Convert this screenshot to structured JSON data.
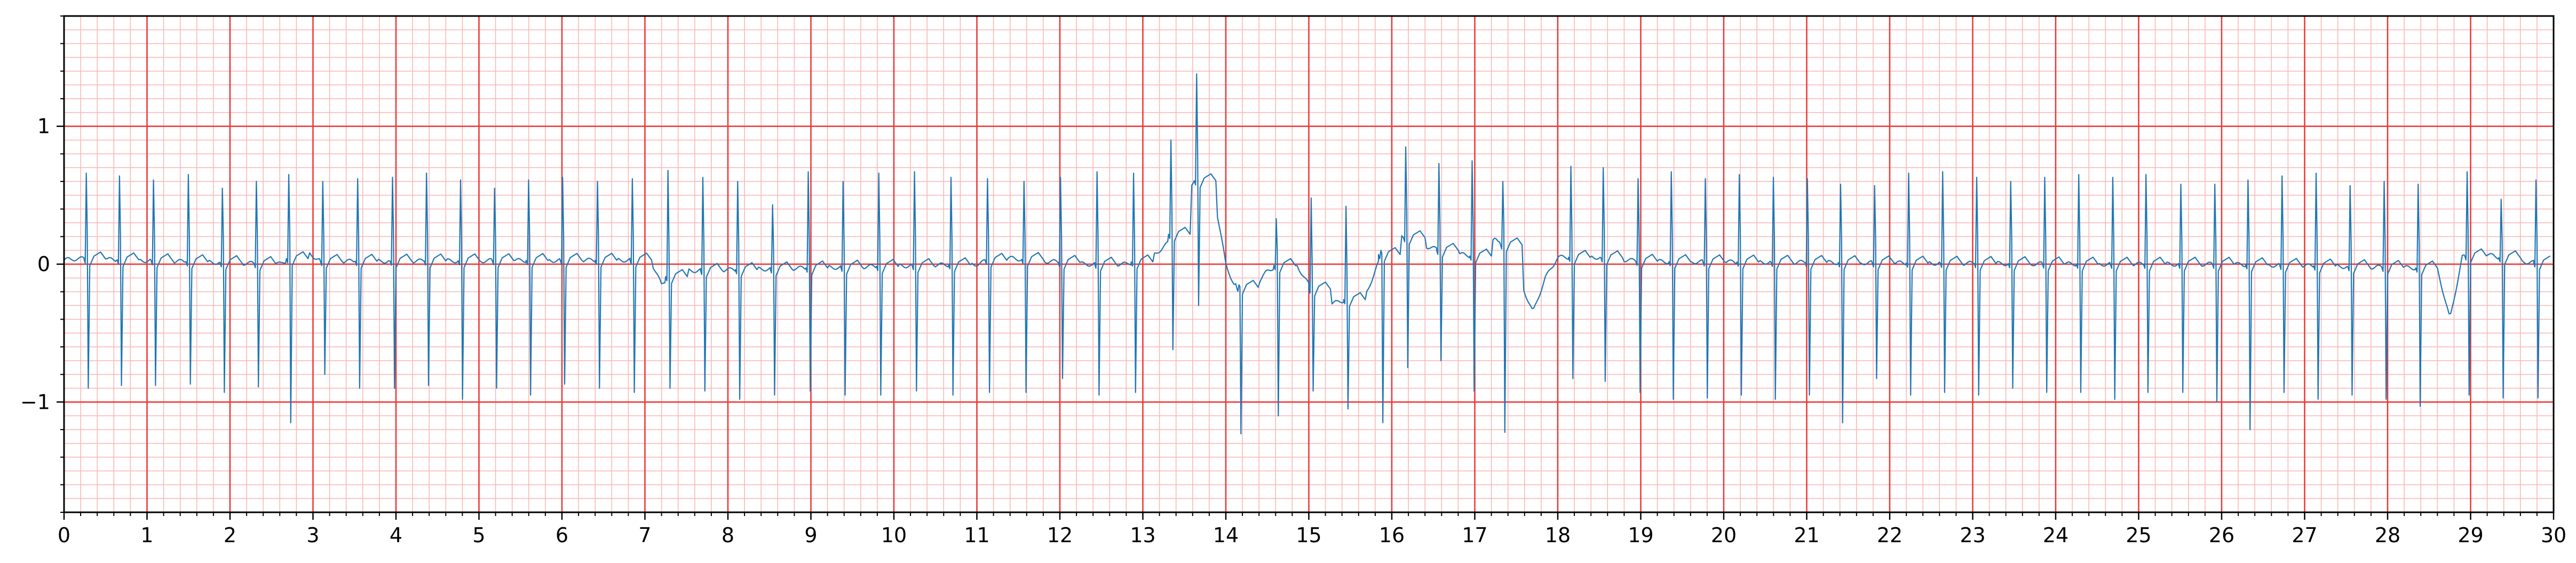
{
  "chart_data": {
    "type": "line",
    "title": "",
    "xlabel": "",
    "ylabel": "",
    "xlim": [
      0,
      30
    ],
    "ylim": [
      -1.8,
      1.8
    ],
    "x_ticks": [
      0,
      1,
      2,
      3,
      4,
      5,
      6,
      7,
      8,
      9,
      10,
      11,
      12,
      13,
      14,
      15,
      16,
      17,
      18,
      19,
      20,
      21,
      22,
      23,
      24,
      25,
      26,
      27,
      28,
      29,
      30
    ],
    "x_tick_labels": [
      "0",
      "1",
      "2",
      "3",
      "4",
      "5",
      "6",
      "7",
      "8",
      "9",
      "10",
      "11",
      "12",
      "13",
      "14",
      "15",
      "16",
      "17",
      "18",
      "19",
      "20",
      "21",
      "22",
      "23",
      "24",
      "25",
      "26",
      "27",
      "28",
      "29",
      "30"
    ],
    "y_ticks": [
      -1,
      0,
      1
    ],
    "y_tick_labels": [
      "−1",
      "0",
      "1"
    ],
    "grid": {
      "major_x_step": 1,
      "major_y_step": 1,
      "minor_x_step": 0.2,
      "minor_y_step": 0.1,
      "major_color": "#ee3333",
      "minor_color": "#f9b4b4"
    },
    "line_color": "#1f77b4",
    "series": [
      {
        "name": "",
        "beats": [
          {
            "t": 0.28,
            "r": 0.66,
            "s": -0.9
          },
          {
            "t": 0.68,
            "r": 0.64,
            "s": -0.88
          },
          {
            "t": 1.09,
            "r": 0.61,
            "s": -0.88
          },
          {
            "t": 1.51,
            "r": 0.65,
            "s": -0.87
          },
          {
            "t": 1.92,
            "r": 0.55,
            "s": -0.93
          },
          {
            "t": 2.33,
            "r": 0.6,
            "s": -0.89
          },
          {
            "t": 2.72,
            "r": 0.65,
            "s": -1.15
          },
          {
            "t": 3.13,
            "r": 0.6,
            "s": -0.8
          },
          {
            "t": 3.55,
            "r": 0.62,
            "s": -0.9
          },
          {
            "t": 3.97,
            "r": 0.63,
            "s": -0.9
          },
          {
            "t": 4.38,
            "r": 0.66,
            "s": -0.88
          },
          {
            "t": 4.79,
            "r": 0.61,
            "s": -0.98
          },
          {
            "t": 5.2,
            "r": 0.55,
            "s": -0.9
          },
          {
            "t": 5.61,
            "r": 0.61,
            "s": -0.95
          },
          {
            "t": 6.02,
            "r": 0.63,
            "s": -0.87
          },
          {
            "t": 6.44,
            "r": 0.6,
            "s": -0.9
          },
          {
            "t": 6.86,
            "r": 0.62,
            "s": -0.93
          },
          {
            "t": 7.29,
            "r": 0.68,
            "s": -0.9
          },
          {
            "t": 7.71,
            "r": 0.63,
            "s": -0.92
          },
          {
            "t": 8.13,
            "r": 0.6,
            "s": -0.98
          },
          {
            "t": 8.55,
            "r": 0.43,
            "s": -0.95
          },
          {
            "t": 8.98,
            "r": 0.67,
            "s": -0.92
          },
          {
            "t": 9.4,
            "r": 0.6,
            "s": -0.95
          },
          {
            "t": 9.83,
            "r": 0.66,
            "s": -0.95
          },
          {
            "t": 10.26,
            "r": 0.67,
            "s": -0.92
          },
          {
            "t": 10.7,
            "r": 0.63,
            "s": -0.95
          },
          {
            "t": 11.14,
            "r": 0.62,
            "s": -0.93
          },
          {
            "t": 11.58,
            "r": 0.6,
            "s": -0.93
          },
          {
            "t": 12.02,
            "r": 0.63,
            "s": -0.83
          },
          {
            "t": 12.46,
            "r": 0.67,
            "s": -0.95
          },
          {
            "t": 12.9,
            "r": 0.66,
            "s": -0.93
          },
          {
            "t": 13.35,
            "r": 0.9,
            "s": -0.62
          },
          {
            "t": 13.66,
            "r": 1.38,
            "s": -0.3
          },
          {
            "t": 14.17,
            "r": -0.15,
            "s": -1.23
          },
          {
            "t": 14.62,
            "r": 0.33,
            "s": -1.1
          },
          {
            "t": 15.04,
            "r": 0.48,
            "s": -0.92
          },
          {
            "t": 15.46,
            "r": 0.42,
            "s": -1.05
          },
          {
            "t": 15.88,
            "r": 0.1,
            "s": -1.15
          },
          {
            "t": 16.18,
            "r": 0.85,
            "s": -0.75
          },
          {
            "t": 16.58,
            "r": 0.73,
            "s": -0.7
          },
          {
            "t": 16.98,
            "r": 0.75,
            "s": -0.92
          },
          {
            "t": 17.35,
            "r": 0.6,
            "s": -1.22
          },
          {
            "t": 18.17,
            "r": 0.71,
            "s": -0.83
          },
          {
            "t": 18.56,
            "r": 0.7,
            "s": -0.85
          },
          {
            "t": 18.98,
            "r": 0.62,
            "s": -0.93
          },
          {
            "t": 19.38,
            "r": 0.67,
            "s": -0.98
          },
          {
            "t": 19.79,
            "r": 0.62,
            "s": -0.97
          },
          {
            "t": 20.2,
            "r": 0.65,
            "s": -0.95
          },
          {
            "t": 20.61,
            "r": 0.63,
            "s": -0.98
          },
          {
            "t": 21.02,
            "r": 0.62,
            "s": -0.95
          },
          {
            "t": 21.42,
            "r": 0.58,
            "s": -1.15
          },
          {
            "t": 21.83,
            "r": 0.57,
            "s": -0.83
          },
          {
            "t": 22.24,
            "r": 0.66,
            "s": -0.95
          },
          {
            "t": 22.65,
            "r": 0.67,
            "s": -0.93
          },
          {
            "t": 23.06,
            "r": 0.63,
            "s": -0.95
          },
          {
            "t": 23.47,
            "r": 0.6,
            "s": -0.9
          },
          {
            "t": 23.88,
            "r": 0.63,
            "s": -0.93
          },
          {
            "t": 24.29,
            "r": 0.65,
            "s": -0.93
          },
          {
            "t": 24.7,
            "r": 0.63,
            "s": -0.98
          },
          {
            "t": 25.1,
            "r": 0.65,
            "s": -0.93
          },
          {
            "t": 25.52,
            "r": 0.58,
            "s": -0.93
          },
          {
            "t": 25.93,
            "r": 0.58,
            "s": -1.0
          },
          {
            "t": 26.33,
            "r": 0.61,
            "s": -1.2
          },
          {
            "t": 26.74,
            "r": 0.64,
            "s": -0.93
          },
          {
            "t": 27.15,
            "r": 0.66,
            "s": -0.98
          },
          {
            "t": 27.56,
            "r": 0.57,
            "s": -0.95
          },
          {
            "t": 27.97,
            "r": 0.6,
            "s": -0.98
          },
          {
            "t": 28.38,
            "r": 0.58,
            "s": -1.03
          },
          {
            "t": 28.97,
            "r": 0.67,
            "s": -0.95
          },
          {
            "t": 29.38,
            "r": 0.47,
            "s": -0.97
          },
          {
            "t": 29.8,
            "r": 0.61,
            "s": -0.97
          }
        ],
        "baseline_points": [
          [
            0,
            0.03
          ],
          [
            0.15,
            0.04
          ],
          [
            2.6,
            0.0
          ],
          [
            2.9,
            0.1
          ],
          [
            3.1,
            0.02
          ],
          [
            6.9,
            0.03
          ],
          [
            7.05,
            0.05
          ],
          [
            7.2,
            -0.15
          ],
          [
            7.35,
            -0.05
          ],
          [
            11.0,
            0.0
          ],
          [
            11.25,
            0.05
          ],
          [
            12.3,
            0.0
          ],
          [
            12.8,
            0.0
          ],
          [
            13.1,
            0.05
          ],
          [
            13.3,
            0.15
          ],
          [
            13.45,
            0.35
          ],
          [
            13.55,
            0.55
          ],
          [
            13.75,
            0.65
          ],
          [
            13.9,
            0.35
          ],
          [
            14.0,
            0.0
          ],
          [
            14.1,
            -0.15
          ],
          [
            14.3,
            -0.2
          ],
          [
            14.5,
            -0.05
          ],
          [
            14.8,
            0.05
          ],
          [
            15.0,
            -0.15
          ],
          [
            15.2,
            -0.3
          ],
          [
            15.5,
            -0.25
          ],
          [
            15.7,
            -0.2
          ],
          [
            15.9,
            0.1
          ],
          [
            16.1,
            0.22
          ],
          [
            16.3,
            0.15
          ],
          [
            16.7,
            0.08
          ],
          [
            17.1,
            0.05
          ],
          [
            17.25,
            0.2
          ],
          [
            17.45,
            0.08
          ],
          [
            17.6,
            -0.2
          ],
          [
            17.7,
            -0.35
          ],
          [
            17.85,
            -0.1
          ],
          [
            18.0,
            0.05
          ],
          [
            18.5,
            0.05
          ],
          [
            19.0,
            0.02
          ],
          [
            24.5,
            0.0
          ],
          [
            26.0,
            0.0
          ],
          [
            28.6,
            -0.03
          ],
          [
            28.75,
            -0.4
          ],
          [
            28.9,
            0.05
          ],
          [
            29.1,
            0.08
          ],
          [
            29.6,
            0.02
          ],
          [
            30,
            0.0
          ]
        ]
      }
    ]
  }
}
